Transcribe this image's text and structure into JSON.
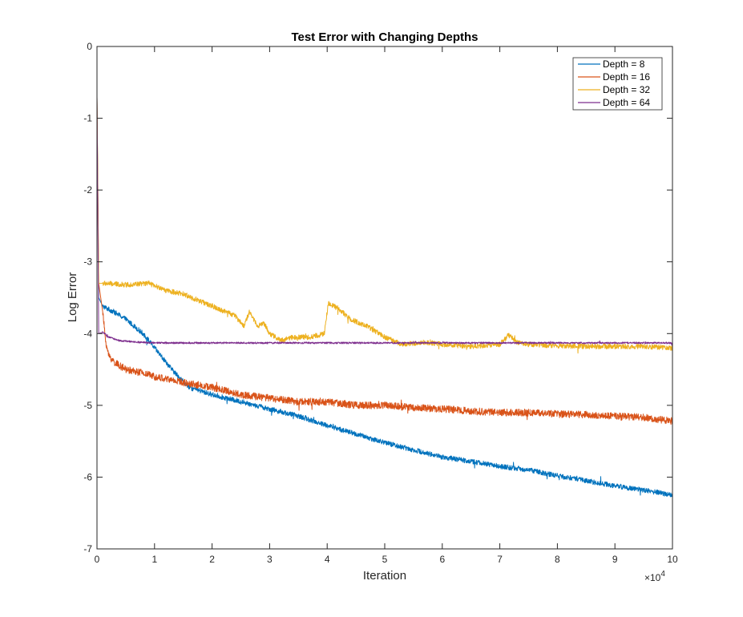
{
  "chart_data": {
    "type": "line",
    "title": "Test Error with Changing Depths",
    "xlabel": "Iteration",
    "ylabel": "Log Error",
    "xlim": [
      0,
      100000
    ],
    "ylim": [
      -7,
      0
    ],
    "x_ticks": [
      0,
      1,
      2,
      3,
      4,
      5,
      6,
      7,
      8,
      9,
      10
    ],
    "x_tick_labels": [
      "0",
      "1",
      "2",
      "3",
      "4",
      "5",
      "6",
      "7",
      "8",
      "9",
      "10"
    ],
    "x_exponent_label": "×10",
    "x_exponent_power": "4",
    "y_ticks": [
      0,
      -1,
      -2,
      -3,
      -4,
      -5,
      -6,
      -7
    ],
    "y_tick_labels": [
      "0",
      "-1",
      "-2",
      "-3",
      "-4",
      "-5",
      "-6",
      "-7"
    ],
    "grid": false,
    "legend_position": "top-right",
    "series": [
      {
        "name": "Depth = 8",
        "color": "#0072BD",
        "noise": 0.035,
        "x": [
          0,
          300,
          1000,
          3000,
          5000,
          8000,
          10000,
          13000,
          16000,
          20000,
          25000,
          30000,
          35000,
          40000,
          45000,
          50000,
          55000,
          60000,
          65000,
          70000,
          75000,
          80000,
          85000,
          90000,
          95000,
          100000
        ],
        "y": [
          -0.7,
          -3.5,
          -3.62,
          -3.7,
          -3.8,
          -4.0,
          -4.2,
          -4.5,
          -4.75,
          -4.85,
          -4.95,
          -5.05,
          -5.15,
          -5.28,
          -5.4,
          -5.52,
          -5.62,
          -5.72,
          -5.78,
          -5.85,
          -5.9,
          -5.98,
          -6.05,
          -6.12,
          -6.18,
          -6.25
        ]
      },
      {
        "name": "Depth = 16",
        "color": "#D95319",
        "noise": 0.05,
        "x": [
          0,
          300,
          1000,
          1500,
          2000,
          3000,
          5000,
          8000,
          10000,
          15000,
          20000,
          25000,
          30000,
          35000,
          40000,
          45000,
          50000,
          55000,
          60000,
          65000,
          70000,
          75000,
          80000,
          85000,
          90000,
          95000,
          100000
        ],
        "y": [
          -0.7,
          -3.3,
          -3.7,
          -4.1,
          -4.3,
          -4.4,
          -4.5,
          -4.55,
          -4.6,
          -4.68,
          -4.75,
          -4.85,
          -4.9,
          -4.95,
          -4.95,
          -5.0,
          -5.0,
          -5.03,
          -5.05,
          -5.08,
          -5.1,
          -5.1,
          -5.12,
          -5.13,
          -5.15,
          -5.17,
          -5.22
        ]
      },
      {
        "name": "Depth = 32",
        "color": "#EDB120",
        "noise": 0.035,
        "x": [
          0,
          300,
          1000,
          5000,
          9000,
          12000,
          15000,
          18000,
          21000,
          24000,
          25500,
          26500,
          28000,
          29000,
          30000,
          32000,
          34000,
          37000,
          39500,
          40200,
          42000,
          44000,
          47000,
          50000,
          53000,
          57000,
          60000,
          65000,
          70000,
          71500,
          73000,
          75000,
          80000,
          85000,
          90000,
          95000,
          100000
        ],
        "y": [
          -0.7,
          -3.3,
          -3.3,
          -3.32,
          -3.3,
          -3.4,
          -3.45,
          -3.55,
          -3.65,
          -3.75,
          -3.9,
          -3.7,
          -3.9,
          -3.85,
          -4.0,
          -4.1,
          -4.05,
          -4.05,
          -4.0,
          -3.58,
          -3.65,
          -3.8,
          -3.9,
          -4.05,
          -4.15,
          -4.12,
          -4.15,
          -4.18,
          -4.15,
          -4.02,
          -4.12,
          -4.15,
          -4.17,
          -4.18,
          -4.18,
          -4.18,
          -4.2
        ]
      },
      {
        "name": "Depth = 64",
        "color": "#7E2F8E",
        "noise": 0.012,
        "x": [
          0,
          300,
          1000,
          2000,
          4000,
          7000,
          10000,
          20000,
          40000,
          60000,
          80000,
          100000
        ],
        "y": [
          -0.7,
          -4.0,
          -3.98,
          -4.05,
          -4.1,
          -4.12,
          -4.13,
          -4.13,
          -4.13,
          -4.13,
          -4.13,
          -4.13
        ]
      }
    ]
  }
}
